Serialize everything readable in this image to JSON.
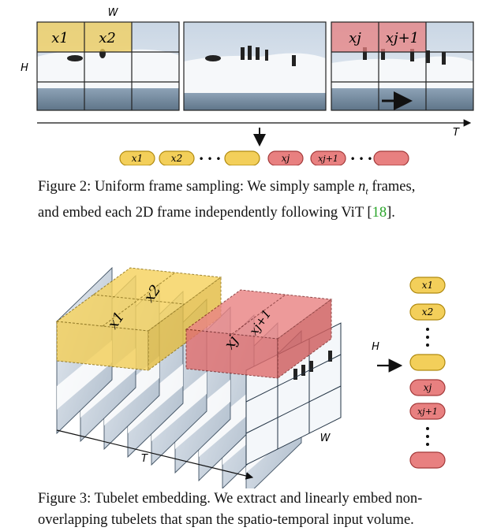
{
  "figure2": {
    "axis_w": "W",
    "axis_h": "H",
    "axis_t": "T",
    "frame1_patch_labels": [
      "x1",
      "x2"
    ],
    "frame3_patch_labels": [
      "xj",
      "xj+1"
    ],
    "token_labels_yellow": [
      "x1",
      "x2"
    ],
    "token_labels_red": [
      "xj",
      "xj+1"
    ],
    "ellipsis": "• • •",
    "caption_line1_prefix": "Figure 2: Uniform frame sampling: We simply sample ",
    "caption_nt": "n",
    "caption_nt_sub": "t",
    "caption_line1_suffix": " frames,",
    "caption_line2_prefix": "and embed each 2D frame independently following ViT [",
    "caption_cite": "18",
    "caption_line2_suffix": "]."
  },
  "figure3": {
    "axis_h": "H",
    "axis_w": "W",
    "axis_t": "T",
    "tubelet_labels_yellow": [
      "x1",
      "x2"
    ],
    "tubelet_labels_red": [
      "xj",
      "xj+1"
    ],
    "token_labels": [
      "x1",
      "x2",
      "xj",
      "xj+1"
    ],
    "caption_line1": "Figure 3: Tubelet embedding. We extract and linearly embed non-",
    "caption_line2": "overlapping tubelets that span the spatio-temporal input volume."
  },
  "colors": {
    "yellow": "#f3cf5a",
    "yellow_stroke": "#b08a10",
    "red": "#e88080",
    "red_stroke": "#a33a3a",
    "citation": "#2aa52a"
  }
}
